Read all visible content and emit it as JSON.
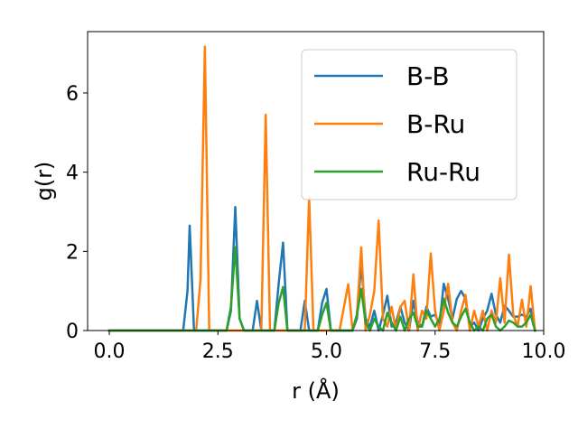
{
  "chart_data": {
    "type": "line",
    "title": "",
    "xlabel": "r (Å)",
    "ylabel": "g(r)",
    "xlim": [
      -0.5,
      10.0
    ],
    "ylim": [
      0,
      7.55
    ],
    "xticks": [
      0.0,
      2.5,
      5.0,
      7.5,
      10.0
    ],
    "xtick_labels": [
      "0.0",
      "2.5",
      "5.0",
      "7.5",
      "10.0"
    ],
    "yticks": [
      0,
      2,
      4,
      6
    ],
    "ytick_labels": [
      "0",
      "2",
      "4",
      "6"
    ],
    "grid": false,
    "legend_position": "top-right",
    "series": [
      {
        "name": "B-B",
        "color": "#1f77b4",
        "x": [
          0,
          1.7,
          1.8,
          1.85,
          1.95,
          2.7,
          2.8,
          2.9,
          3.0,
          3.1,
          3.3,
          3.4,
          3.5,
          3.8,
          3.9,
          4.0,
          4.1,
          4.4,
          4.5,
          4.6,
          4.8,
          4.9,
          5.0,
          5.1,
          5.6,
          5.7,
          5.8,
          5.9,
          6.0,
          6.1,
          6.2,
          6.3,
          6.4,
          6.5,
          6.6,
          6.7,
          6.8,
          6.9,
          7.0,
          7.1,
          7.2,
          7.3,
          7.4,
          7.5,
          7.6,
          7.7,
          7.8,
          7.9,
          8.0,
          8.1,
          8.2,
          8.3,
          8.4,
          8.5,
          8.6,
          8.7,
          8.8,
          8.9,
          9.0,
          9.1,
          9.2,
          9.3,
          9.4,
          9.5,
          9.6,
          9.7,
          9.8
        ],
        "y": [
          0,
          0,
          1.0,
          2.65,
          0,
          0,
          0.5,
          3.12,
          0.3,
          0,
          0,
          0.75,
          0,
          0,
          1.2,
          2.22,
          0,
          0,
          0.75,
          0,
          0,
          0.7,
          1.05,
          0,
          0,
          0.3,
          1.7,
          0.3,
          0.1,
          0.5,
          0,
          0.4,
          0.88,
          0.1,
          0.2,
          0.6,
          0.2,
          0,
          0.75,
          0.2,
          0.1,
          0.6,
          0.35,
          0.4,
          0.15,
          1.18,
          0.8,
          0.3,
          0.8,
          1.0,
          0.8,
          0.1,
          0.2,
          0,
          0.3,
          0.5,
          0.93,
          0.4,
          0.2,
          0.63,
          0.5,
          0.35,
          0.35,
          0.4,
          0.35,
          0.55,
          0
        ]
      },
      {
        "name": "B-Ru",
        "color": "#ff7f0e",
        "x": [
          0,
          2.0,
          2.1,
          2.2,
          2.3,
          3.5,
          3.6,
          3.7,
          4.5,
          4.6,
          4.7,
          5.3,
          5.5,
          5.6,
          5.7,
          5.8,
          5.9,
          6.0,
          6.1,
          6.2,
          6.3,
          6.4,
          6.5,
          6.6,
          6.7,
          6.8,
          6.9,
          7.0,
          7.1,
          7.2,
          7.3,
          7.4,
          7.5,
          7.6,
          7.7,
          7.8,
          7.9,
          8.0,
          8.1,
          8.2,
          8.3,
          8.4,
          8.5,
          8.6,
          8.7,
          8.8,
          8.9,
          9.0,
          9.1,
          9.2,
          9.3,
          9.4,
          9.5,
          9.6,
          9.7,
          9.8
        ],
        "y": [
          0,
          0,
          1.3,
          7.17,
          0,
          0,
          5.45,
          0,
          0,
          3.36,
          0,
          0,
          1.17,
          0,
          0.4,
          2.1,
          0,
          0.4,
          1.0,
          2.78,
          0.3,
          0.1,
          0.6,
          0,
          0.6,
          0.75,
          0,
          1.42,
          0,
          0.5,
          0.3,
          1.95,
          0.5,
          0,
          0.5,
          1.18,
          0.2,
          0,
          0.5,
          0.9,
          0,
          0.5,
          0.1,
          0.5,
          0,
          0.5,
          0.2,
          1.32,
          0.2,
          1.92,
          0.4,
          0.1,
          0.78,
          0.1,
          1.12,
          0
        ]
      },
      {
        "name": "Ru-Ru",
        "color": "#2ca02c",
        "x": [
          0,
          2.7,
          2.8,
          2.9,
          3.0,
          3.1,
          3.8,
          3.9,
          4.0,
          4.1,
          4.8,
          4.9,
          5.0,
          5.1,
          5.6,
          5.7,
          5.8,
          5.9,
          6.0,
          6.1,
          6.2,
          6.3,
          6.4,
          6.5,
          6.6,
          6.7,
          6.8,
          6.9,
          7.0,
          7.1,
          7.2,
          7.3,
          7.4,
          7.5,
          7.6,
          7.7,
          7.8,
          7.9,
          8.0,
          8.1,
          8.2,
          8.3,
          8.4,
          8.5,
          8.6,
          8.7,
          8.8,
          8.9,
          9.0,
          9.1,
          9.2,
          9.3,
          9.4,
          9.5,
          9.6,
          9.7,
          9.8
        ],
        "y": [
          0,
          0,
          0.6,
          2.1,
          0.3,
          0,
          0,
          0.7,
          1.1,
          0,
          0,
          0.4,
          0.7,
          0,
          0,
          0.4,
          1.05,
          0.2,
          0,
          0.3,
          0.1,
          0,
          0.45,
          0.2,
          0,
          0.35,
          0,
          0.3,
          0.45,
          0.1,
          0.1,
          0.5,
          0.3,
          0.1,
          0.3,
          0.8,
          0.45,
          0.2,
          0.1,
          0.35,
          0.55,
          0.2,
          0,
          0.1,
          0,
          0.3,
          0.4,
          0.1,
          0,
          0.1,
          0.25,
          0.2,
          0.1,
          0.1,
          0.2,
          0.4,
          0
        ]
      }
    ]
  }
}
